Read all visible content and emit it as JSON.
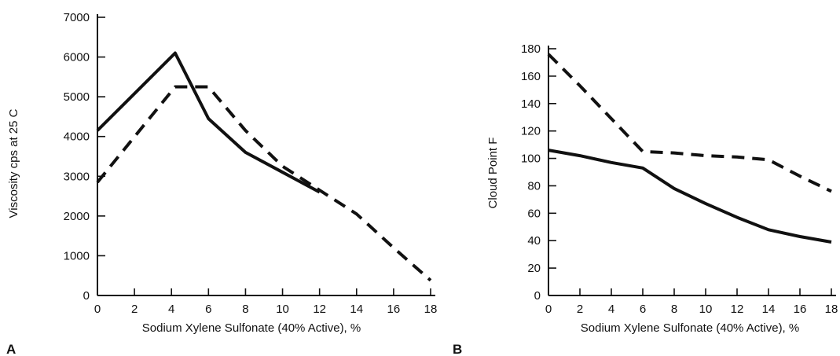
{
  "chart_data": [
    {
      "type": "line",
      "panel_label": "A",
      "xlabel": "Sodium Xylene Sulfonate (40% Active), %",
      "ylabel": "Viscosity cps at 25 C",
      "xlim": [
        0,
        18
      ],
      "ylim": [
        0,
        7000
      ],
      "xticks": [
        0,
        2,
        4,
        6,
        8,
        10,
        12,
        14,
        16,
        18
      ],
      "yticks": [
        0,
        1000,
        2000,
        3000,
        4000,
        5000,
        6000,
        7000
      ],
      "grid": false,
      "series": [
        {
          "style": "solid",
          "x": [
            0,
            4.2,
            6,
            8,
            10,
            12
          ],
          "y": [
            4150,
            6100,
            4450,
            3600,
            3100,
            2600
          ]
        },
        {
          "style": "dashed",
          "x": [
            0,
            4.2,
            6,
            8,
            10,
            12,
            14,
            16,
            18
          ],
          "y": [
            2850,
            5250,
            5250,
            4150,
            3250,
            2650,
            2050,
            1200,
            380
          ]
        }
      ]
    },
    {
      "type": "line",
      "panel_label": "B",
      "xlabel": "Sodium Xylene Sulfonate (40% Active), %",
      "ylabel": "Cloud Point F",
      "xlim": [
        0,
        18
      ],
      "ylim": [
        0,
        180
      ],
      "xticks": [
        0,
        2,
        4,
        6,
        8,
        10,
        12,
        14,
        16,
        18
      ],
      "yticks": [
        0,
        20,
        40,
        60,
        80,
        100,
        120,
        140,
        160,
        180
      ],
      "grid": false,
      "series": [
        {
          "style": "solid",
          "x": [
            0,
            2,
            4,
            6,
            8,
            10,
            12,
            14,
            16,
            18
          ],
          "y": [
            106,
            102,
            97,
            93,
            78,
            67,
            57,
            48,
            43,
            39
          ]
        },
        {
          "style": "dashed",
          "x": [
            0,
            2,
            4,
            6,
            8,
            10,
            12,
            14,
            16,
            18
          ],
          "y": [
            176,
            153,
            129,
            105,
            104,
            102,
            101,
            99,
            87,
            76
          ]
        }
      ]
    }
  ]
}
